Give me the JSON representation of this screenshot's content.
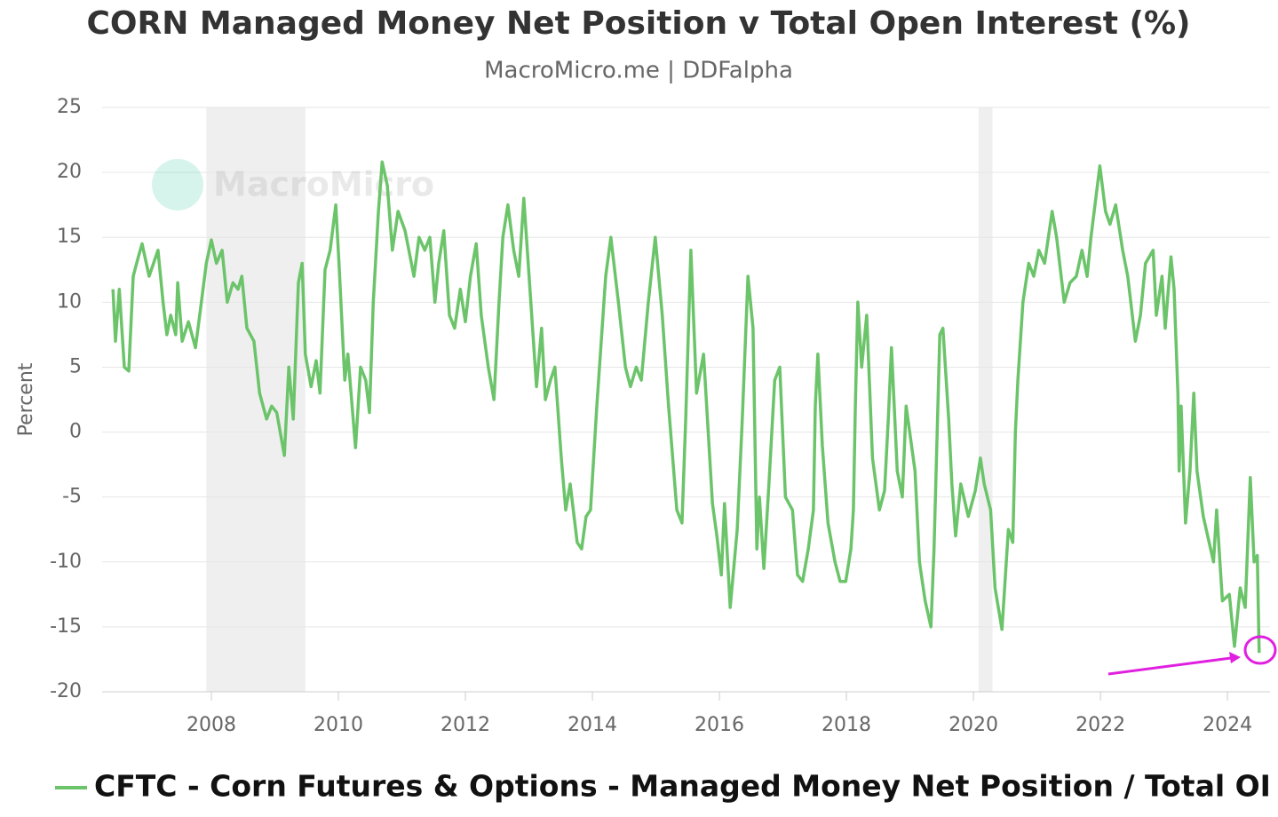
{
  "chart_data": {
    "type": "line",
    "title": "CORN Managed Money Net Position v Total Open Interest (%)",
    "subtitle": "MacroMicro.me | DDFalpha",
    "watermark": "MacroMicro",
    "y_label": "Percent",
    "xlim": [
      2006.28,
      2024.67
    ],
    "xticks": [
      2008,
      2010,
      2012,
      2014,
      2016,
      2018,
      2020,
      2022,
      2024
    ],
    "ylim": [
      -20,
      25
    ],
    "yticks": [
      -20,
      -15,
      -10,
      -5,
      0,
      5,
      10,
      15,
      20,
      25
    ],
    "grid": true,
    "legend": "bottom",
    "shaded_ranges": [
      [
        2007.92,
        2009.48
      ],
      [
        2020.08,
        2020.3
      ]
    ],
    "x": [
      2006.45,
      2006.49,
      2006.55,
      2006.63,
      2006.7,
      2006.77,
      2006.85,
      2006.91,
      2007.02,
      2007.16,
      2007.24,
      2007.3,
      2007.36,
      2007.44,
      2007.47,
      2007.54,
      2007.64,
      2007.75,
      2007.83,
      2007.92,
      2008.0,
      2008.08,
      2008.17,
      2008.25,
      2008.34,
      2008.42,
      2008.48,
      2008.56,
      2008.67,
      2008.76,
      2008.87,
      2008.95,
      2009.03,
      2009.15,
      2009.22,
      2009.29,
      2009.37,
      2009.43,
      2009.48,
      2009.57,
      2009.65,
      2009.71,
      2009.79,
      2009.87,
      2009.96,
      2010.01,
      2010.1,
      2010.15,
      2010.27,
      2010.35,
      2010.43,
      2010.49,
      2010.55,
      2010.63,
      2010.69,
      2010.77,
      2010.85,
      2010.94,
      2011.05,
      2011.19,
      2011.27,
      2011.36,
      2011.44,
      2011.52,
      2011.58,
      2011.66,
      2011.75,
      2011.83,
      2011.92,
      2012.0,
      2012.08,
      2012.17,
      2012.25,
      2012.36,
      2012.45,
      2012.53,
      2012.59,
      2012.67,
      2012.76,
      2012.84,
      2012.92,
      2013.03,
      2013.12,
      2013.2,
      2013.26,
      2013.34,
      2013.41,
      2013.51,
      2013.58,
      2013.65,
      2013.76,
      2013.83,
      2013.9,
      2013.97,
      2014.07,
      2014.21,
      2014.29,
      2014.41,
      2014.52,
      2014.6,
      2014.69,
      2014.77,
      2014.88,
      2014.99,
      2015.1,
      2015.2,
      2015.33,
      2015.41,
      2015.47,
      2015.55,
      2015.64,
      2015.75,
      2015.8,
      2015.89,
      2015.96,
      2016.03,
      2016.08,
      2016.17,
      2016.28,
      2016.36,
      2016.45,
      2016.53,
      2016.59,
      2016.63,
      2016.7,
      2016.78,
      2016.87,
      2016.95,
      2017.04,
      2017.15,
      2017.23,
      2017.31,
      2017.4,
      2017.48,
      2017.51,
      2017.55,
      2017.62,
      2017.71,
      2017.82,
      2017.9,
      2017.99,
      2018.07,
      2018.11,
      2018.14,
      2018.18,
      2018.24,
      2018.32,
      2018.41,
      2018.52,
      2018.6,
      2018.66,
      2018.71,
      2018.8,
      2018.88,
      2018.94,
      2019.08,
      2019.15,
      2019.24,
      2019.33,
      2019.38,
      2019.47,
      2019.52,
      2019.61,
      2019.66,
      2019.72,
      2019.8,
      2019.92,
      2020.03,
      2020.11,
      2020.17,
      2020.27,
      2020.34,
      2020.45,
      2020.55,
      2020.62,
      2020.66,
      2020.7,
      2020.78,
      2020.87,
      2020.95,
      2021.03,
      2021.12,
      2021.24,
      2021.31,
      2021.43,
      2021.52,
      2021.62,
      2021.71,
      2021.79,
      2021.85,
      2021.99,
      2022.08,
      2022.15,
      2022.24,
      2022.35,
      2022.43,
      2022.55,
      2022.63,
      2022.71,
      2022.83,
      2022.88,
      2022.97,
      2023.02,
      2023.11,
      2023.16,
      2023.22,
      2023.24,
      2023.27,
      2023.34,
      2023.41,
      2023.47,
      2023.52,
      2023.62,
      2023.78,
      2023.83,
      2023.92,
      2024.03,
      2024.11,
      2024.2,
      2024.28,
      2024.36,
      2024.42,
      2024.47,
      2024.5
    ],
    "series": [
      {
        "name": "CFTC - Corn Futures & Options - Managed Money Net Position / Total OI",
        "color": "#6cc46a",
        "values": [
          11,
          7,
          11,
          5,
          4.7,
          12,
          13.5,
          14.5,
          12,
          14,
          10,
          7.5,
          9,
          7.5,
          11.5,
          7,
          8.5,
          6.5,
          9.5,
          13,
          14.8,
          13,
          14,
          10,
          11.5,
          11,
          12,
          8,
          7,
          3,
          1,
          2,
          1.5,
          -1.8,
          5,
          1,
          11.5,
          13,
          6,
          3.5,
          5.5,
          3,
          12.5,
          14,
          17.5,
          13,
          4,
          6,
          -1.2,
          5,
          4,
          1.5,
          10,
          17,
          20.8,
          19,
          14,
          17,
          15.5,
          12,
          15,
          14,
          15,
          10,
          13,
          15.5,
          9,
          8,
          11,
          8.5,
          12,
          14.5,
          9,
          5,
          2.5,
          10,
          15,
          17.5,
          14,
          12,
          18,
          10,
          3.5,
          8,
          2.5,
          4,
          5,
          -2,
          -6,
          -4,
          -8.5,
          -9,
          -6.5,
          -6,
          2,
          12,
          15,
          10,
          5,
          3.5,
          5,
          4,
          10,
          15,
          9,
          2,
          -6,
          -7,
          1,
          14,
          3,
          6,
          2,
          -5.5,
          -8,
          -11,
          -5.5,
          -13.5,
          -7.5,
          1,
          12,
          8,
          -9,
          -5,
          -10.5,
          -4,
          4,
          5,
          -5,
          -6,
          -11,
          -11.5,
          -9,
          -6,
          2,
          6,
          -1,
          -7,
          -10,
          -11.5,
          -11.5,
          -9,
          -6,
          2,
          10,
          5,
          9,
          -2,
          -6,
          -4.5,
          1,
          6.5,
          -3,
          -5,
          2,
          -3,
          -10,
          -13,
          -15,
          -9,
          7.5,
          8,
          1,
          -4,
          -8,
          -4,
          -6.5,
          -4.5,
          -2,
          -4,
          -6,
          -12,
          -15.2,
          -7.5,
          -8.5,
          0,
          4,
          10,
          13,
          12,
          14,
          13,
          17,
          15,
          10,
          11.5,
          12,
          14,
          12,
          15,
          20.5,
          17,
          16,
          17.5,
          14,
          12,
          7,
          9,
          13,
          14,
          9,
          12,
          8,
          13.5,
          11,
          3,
          -3,
          2,
          -7,
          -3,
          3,
          -3,
          -6.5,
          -10,
          -6,
          -13,
          -12.5,
          -16.5,
          -12,
          -13.5,
          -3.5,
          -10,
          -9.5,
          -17
        ]
      }
    ]
  }
}
